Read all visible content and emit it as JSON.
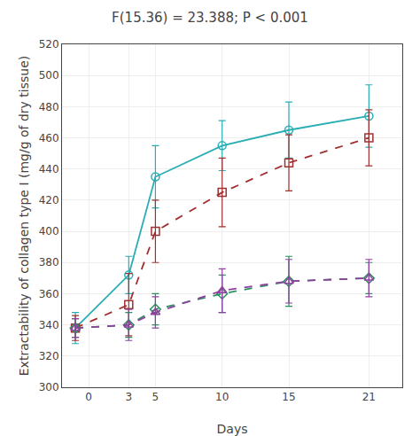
{
  "chart_data": {
    "type": "line",
    "title": "F(15.36) = 23.388; P < 0.001",
    "x_label": "Days",
    "y_label": "Extractability of collagen type I (mg/g of dry tissue)",
    "x": [
      -1,
      3,
      5,
      10,
      15,
      21
    ],
    "xlim": [
      -2.0,
      23.5
    ],
    "xticks": [
      0,
      3,
      5,
      10,
      15,
      21
    ],
    "ylim": [
      300,
      520
    ],
    "yticks": [
      300,
      320,
      340,
      360,
      380,
      400,
      420,
      440,
      460,
      480,
      500,
      520
    ],
    "grid": true,
    "series": [
      {
        "color": "#29adb5",
        "marker": "circle",
        "line_style": "solid",
        "values": [
          338,
          372,
          435,
          455,
          465,
          474
        ],
        "yerr": [
          10,
          12,
          20,
          16,
          18,
          20
        ]
      },
      {
        "color": "#a03030",
        "marker": "square",
        "line_style": "dashed",
        "values": [
          338,
          353,
          400,
          425,
          444,
          460
        ],
        "yerr": [
          8,
          20,
          20,
          22,
          18,
          18
        ]
      },
      {
        "color": "#2a9060",
        "marker": "diamond",
        "line_style": "dashed",
        "values": [
          338,
          340,
          350,
          360,
          368,
          370
        ],
        "yerr": [
          6,
          8,
          10,
          12,
          16,
          10
        ]
      },
      {
        "color": "#9040a0",
        "marker": "triangle",
        "line_style": "dashed",
        "values": [
          338,
          340,
          348,
          362,
          368,
          370
        ],
        "yerr": [
          6,
          10,
          10,
          14,
          14,
          12
        ]
      }
    ]
  }
}
